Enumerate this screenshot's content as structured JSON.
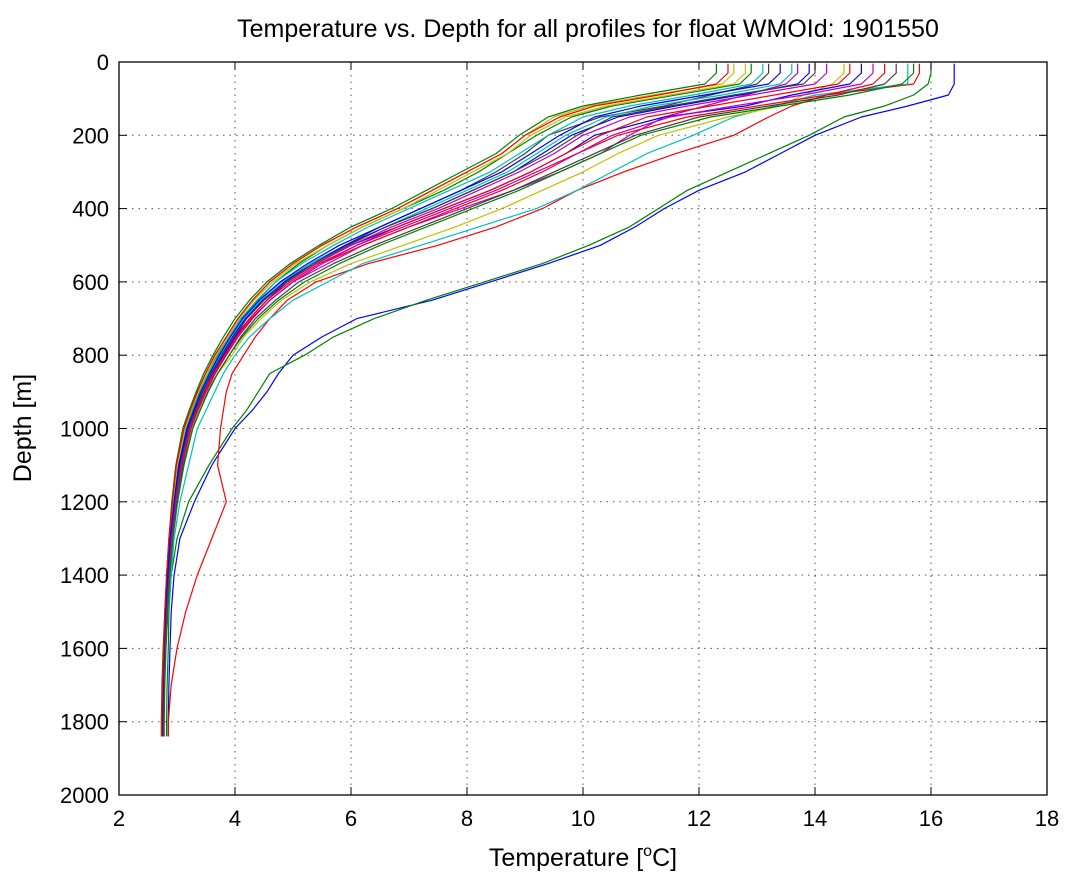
{
  "chart_data": {
    "type": "line",
    "title": "Temperature vs. Depth for all profiles for float WMOId: 1901550",
    "xlabel": "Temperature [",
    "xlabel_sup": "o",
    "xlabel_tail": "C]",
    "ylabel": "Depth [m]",
    "xlim": [
      2,
      18
    ],
    "ylim": [
      0,
      2000
    ],
    "y_reversed": true,
    "grid": true,
    "xticks": [
      "2",
      "4",
      "6",
      "8",
      "10",
      "12",
      "14",
      "16",
      "18"
    ],
    "yticks": [
      "0",
      "200",
      "400",
      "600",
      "800",
      "1000",
      "1200",
      "1400",
      "1600",
      "1800",
      "2000"
    ],
    "series_colors": [
      "#0000ff",
      "#008000",
      "#ff0000",
      "#00bfbf",
      "#bf00bf",
      "#bfbf00",
      "#404040"
    ],
    "depths": [
      5,
      30,
      60,
      90,
      120,
      150,
      200,
      250,
      300,
      350,
      400,
      450,
      500,
      550,
      600,
      650,
      700,
      750,
      800,
      850,
      900,
      950,
      1000,
      1100,
      1200,
      1300,
      1400,
      1500,
      1600,
      1700,
      1800,
      1840
    ],
    "profiles": [
      [
        16.4,
        16.4,
        16.4,
        16.3,
        15.6,
        14.8,
        14.0,
        13.4,
        12.8,
        12.0,
        11.4,
        10.9,
        10.3,
        9.4,
        8.4,
        7.4,
        6.1,
        5.5,
        5.0,
        4.75,
        4.55,
        4.3,
        4.0,
        3.6,
        3.3,
        3.05,
        2.95,
        2.9,
        2.88,
        2.86,
        2.85,
        2.85
      ],
      [
        16.0,
        16.0,
        15.95,
        15.7,
        15.2,
        14.5,
        13.9,
        13.2,
        12.5,
        11.8,
        11.3,
        10.8,
        10.1,
        9.3,
        8.3,
        7.3,
        6.4,
        5.7,
        5.2,
        4.6,
        4.4,
        4.2,
        3.95,
        3.55,
        3.2,
        3.0,
        2.9,
        2.86,
        2.85,
        2.83,
        2.82,
        2.82
      ],
      [
        15.8,
        15.8,
        15.7,
        14.2,
        13.6,
        13.2,
        12.6,
        11.6,
        10.7,
        9.9,
        9.3,
        8.5,
        7.5,
        6.3,
        5.4,
        4.9,
        4.6,
        4.35,
        4.15,
        3.95,
        3.85,
        3.8,
        3.75,
        3.7,
        3.85,
        3.6,
        3.35,
        3.15,
        3.0,
        2.9,
        2.85,
        2.85
      ],
      [
        15.6,
        15.6,
        15.6,
        14.0,
        13.3,
        12.6,
        11.9,
        11.1,
        10.5,
        9.9,
        9.2,
        8.2,
        7.2,
        6.2,
        5.6,
        5.0,
        4.6,
        4.25,
        4.0,
        3.8,
        3.65,
        3.5,
        3.35,
        3.2,
        3.05,
        2.95,
        2.9,
        2.85,
        2.8,
        2.78,
        2.76,
        2.76
      ],
      [
        13.7,
        13.7,
        13.5,
        12.8,
        12.1,
        11.4,
        10.8,
        10.3,
        9.6,
        8.8,
        7.9,
        7.0,
        6.2,
        5.6,
        5.0,
        4.6,
        4.3,
        4.05,
        3.85,
        3.65,
        3.5,
        3.38,
        3.25,
        3.1,
        3.0,
        2.92,
        2.86,
        2.83,
        2.8,
        2.78,
        2.77,
        2.77
      ],
      [
        14.5,
        14.5,
        14.3,
        13.8,
        13.4,
        12.5,
        11.3,
        10.6,
        10.0,
        9.3,
        8.6,
        7.8,
        6.9,
        6.0,
        5.3,
        4.8,
        4.45,
        4.15,
        3.95,
        3.7,
        3.5,
        3.38,
        3.25,
        3.1,
        3.0,
        2.92,
        2.86,
        2.82,
        2.79,
        2.77,
        2.76,
        2.76
      ],
      [
        13.2,
        13.2,
        13.0,
        12.2,
        11.4,
        10.3,
        9.4,
        9.0,
        8.5,
        7.9,
        7.2,
        6.5,
        5.9,
        5.3,
        4.85,
        4.5,
        4.2,
        4.0,
        3.8,
        3.6,
        3.45,
        3.3,
        3.2,
        3.05,
        2.96,
        2.9,
        2.85,
        2.81,
        2.79,
        2.77,
        2.76,
        2.76
      ],
      [
        14.8,
        14.8,
        14.6,
        13.6,
        12.8,
        11.4,
        10.2,
        9.7,
        9.1,
        8.4,
        7.6,
        6.8,
        6.0,
        5.4,
        4.9,
        4.55,
        4.25,
        4.0,
        3.8,
        3.62,
        3.48,
        3.35,
        3.22,
        3.07,
        2.97,
        2.9,
        2.85,
        2.81,
        2.78,
        2.76,
        2.75,
        2.75
      ],
      [
        12.9,
        12.9,
        12.7,
        11.6,
        10.5,
        9.8,
        9.2,
        8.7,
        8.2,
        7.6,
        6.9,
        6.2,
        5.6,
        5.1,
        4.7,
        4.4,
        4.1,
        3.9,
        3.7,
        3.52,
        3.38,
        3.26,
        3.15,
        3.02,
        2.94,
        2.88,
        2.84,
        2.8,
        2.78,
        2.76,
        2.75,
        2.75
      ],
      [
        15.2,
        15.2,
        15.0,
        14.2,
        13.0,
        11.8,
        10.6,
        9.9,
        9.3,
        8.6,
        7.8,
        7.0,
        6.2,
        5.5,
        5.0,
        4.6,
        4.3,
        4.05,
        3.85,
        3.66,
        3.5,
        3.36,
        3.24,
        3.09,
        2.98,
        2.91,
        2.86,
        2.82,
        2.79,
        2.77,
        2.76,
        2.76
      ],
      [
        13.6,
        13.6,
        13.4,
        12.4,
        11.2,
        10.4,
        9.7,
        9.2,
        8.7,
        8.0,
        7.3,
        6.6,
        5.9,
        5.3,
        4.8,
        4.45,
        4.15,
        3.95,
        3.75,
        3.57,
        3.42,
        3.3,
        3.18,
        3.04,
        2.95,
        2.89,
        2.84,
        2.8,
        2.78,
        2.76,
        2.75,
        2.75
      ],
      [
        14.2,
        14.2,
        14.0,
        12.9,
        11.8,
        10.8,
        10.0,
        9.5,
        8.9,
        8.2,
        7.5,
        6.7,
        6.0,
        5.4,
        4.9,
        4.5,
        4.2,
        3.98,
        3.78,
        3.6,
        3.45,
        3.32,
        3.2,
        3.05,
        2.96,
        2.9,
        2.85,
        2.81,
        2.78,
        2.76,
        2.75,
        2.75
      ],
      [
        12.6,
        12.6,
        12.4,
        11.2,
        10.1,
        9.5,
        9.0,
        8.6,
        8.0,
        7.4,
        6.8,
        6.1,
        5.5,
        5.0,
        4.6,
        4.3,
        4.05,
        3.85,
        3.66,
        3.5,
        3.36,
        3.24,
        3.13,
        3.0,
        2.92,
        2.87,
        2.83,
        2.79,
        2.77,
        2.75,
        2.74,
        2.74
      ],
      [
        15.4,
        15.4,
        15.2,
        14.4,
        13.2,
        12.0,
        10.9,
        10.2,
        9.5,
        8.8,
        8.0,
        7.2,
        6.4,
        5.7,
        5.1,
        4.7,
        4.35,
        4.1,
        3.9,
        3.7,
        3.53,
        3.4,
        3.27,
        3.11,
        3.0,
        2.92,
        2.87,
        2.83,
        2.8,
        2.78,
        2.77,
        2.77
      ],
      [
        13.9,
        13.9,
        13.7,
        12.7,
        11.6,
        10.6,
        9.8,
        9.3,
        8.8,
        8.1,
        7.4,
        6.6,
        5.9,
        5.35,
        4.85,
        4.48,
        4.18,
        3.96,
        3.77,
        3.59,
        3.44,
        3.31,
        3.19,
        3.05,
        2.96,
        2.89,
        2.85,
        2.81,
        2.78,
        2.76,
        2.75,
        2.75
      ],
      [
        12.3,
        12.3,
        12.1,
        11.0,
        10.0,
        9.4,
        8.9,
        8.5,
        7.9,
        7.3,
        6.7,
        6.0,
        5.45,
        4.95,
        4.55,
        4.25,
        4.0,
        3.8,
        3.62,
        3.46,
        3.33,
        3.21,
        3.1,
        2.98,
        2.91,
        2.86,
        2.82,
        2.79,
        2.76,
        2.74,
        2.73,
        2.73
      ],
      [
        14.6,
        14.6,
        14.4,
        13.3,
        12.2,
        11.1,
        10.3,
        9.7,
        9.1,
        8.4,
        7.6,
        6.8,
        6.1,
        5.45,
        4.95,
        4.55,
        4.25,
        4.02,
        3.82,
        3.63,
        3.47,
        3.34,
        3.22,
        3.07,
        2.97,
        2.9,
        2.85,
        2.81,
        2.79,
        2.77,
        2.76,
        2.76
      ],
      [
        13.1,
        13.1,
        12.9,
        11.9,
        10.8,
        10.0,
        9.4,
        8.9,
        8.4,
        7.7,
        7.0,
        6.3,
        5.7,
        5.15,
        4.7,
        4.38,
        4.1,
        3.9,
        3.71,
        3.54,
        3.4,
        3.28,
        3.16,
        3.02,
        2.94,
        2.88,
        2.84,
        2.8,
        2.78,
        2.76,
        2.75,
        2.75
      ],
      [
        15.0,
        15.0,
        14.8,
        13.8,
        12.6,
        11.5,
        10.5,
        9.9,
        9.2,
        8.5,
        7.7,
        6.9,
        6.1,
        5.5,
        5.0,
        4.6,
        4.28,
        4.04,
        3.84,
        3.65,
        3.49,
        3.36,
        3.23,
        3.08,
        2.98,
        2.91,
        2.86,
        2.82,
        2.79,
        2.77,
        2.76,
        2.76
      ],
      [
        12.8,
        12.8,
        12.6,
        11.5,
        10.4,
        9.7,
        9.1,
        8.7,
        8.1,
        7.5,
        6.9,
        6.2,
        5.6,
        5.05,
        4.65,
        4.33,
        4.07,
        3.87,
        3.68,
        3.52,
        3.37,
        3.25,
        3.14,
        3.01,
        2.93,
        2.87,
        2.83,
        2.8,
        2.77,
        2.75,
        2.74,
        2.74
      ],
      [
        14.0,
        14.0,
        13.8,
        12.6,
        11.5,
        10.5,
        9.9,
        9.4,
        8.8,
        8.1,
        7.4,
        6.6,
        5.95,
        5.35,
        4.88,
        4.5,
        4.2,
        3.97,
        3.78,
        3.6,
        3.45,
        3.32,
        3.2,
        3.06,
        2.96,
        2.89,
        2.85,
        2.81,
        2.78,
        2.76,
        2.75,
        2.75
      ],
      [
        13.4,
        13.4,
        13.2,
        12.1,
        11.0,
        10.2,
        9.6,
        9.1,
        8.6,
        7.9,
        7.2,
        6.5,
        5.8,
        5.25,
        4.78,
        4.42,
        4.13,
        3.92,
        3.73,
        3.56,
        3.41,
        3.29,
        3.17,
        3.03,
        2.95,
        2.88,
        2.84,
        2.8,
        2.78,
        2.76,
        2.75,
        2.75
      ],
      [
        15.7,
        15.7,
        15.5,
        14.6,
        13.4,
        12.2,
        11.0,
        10.3,
        9.6,
        8.9,
        8.1,
        7.3,
        6.5,
        5.8,
        5.2,
        4.75,
        4.4,
        4.12,
        3.9,
        3.7,
        3.54,
        3.4,
        3.27,
        3.12,
        3.01,
        2.93,
        2.88,
        2.84,
        2.81,
        2.79,
        2.78,
        2.78
      ],
      [
        12.5,
        12.5,
        12.3,
        11.3,
        10.2,
        9.6,
        9.0,
        8.6,
        8.0,
        7.4,
        6.8,
        6.1,
        5.5,
        5.0,
        4.6,
        4.3,
        4.05,
        3.85,
        3.65,
        3.49,
        3.35,
        3.23,
        3.12,
        2.99,
        2.92,
        2.86,
        2.82,
        2.79,
        2.77,
        2.75,
        2.74,
        2.74
      ]
    ]
  }
}
